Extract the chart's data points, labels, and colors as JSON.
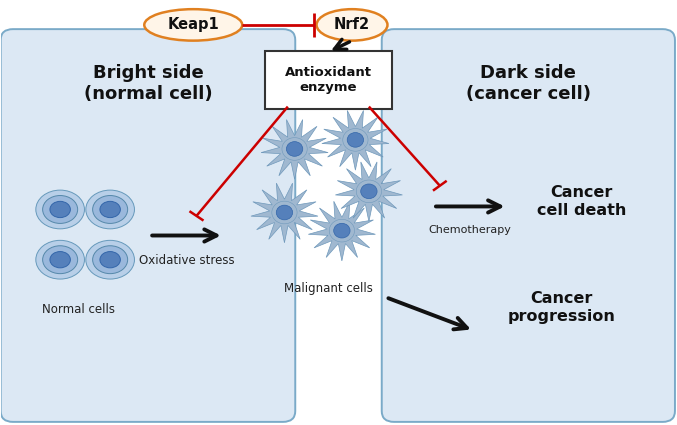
{
  "fig_width": 6.77,
  "fig_height": 4.25,
  "dpi": 100,
  "bg_color": "#ffffff",
  "box_fill": "#dce8f4",
  "box_edge": "#7aaac8",
  "keap1_label": "Keap1",
  "nrf2_label": "Nrf2",
  "antioxidant_label": "Antioxidant\nenzyme",
  "bright_side_label": "Bright side\n(normal cell)",
  "dark_side_label": "Dark side\n(cancer cell)",
  "normal_cells_label": "Normal cells",
  "oxidative_stress_label": "Oxidative stress",
  "malignant_cells_label": "Malignant cells",
  "chemotherapy_label": "Chemotherapy",
  "cancer_death_label": "Cancer\ncell death",
  "cancer_prog_label": "Cancer\nprogression",
  "cell_outer": "#b8cfe8",
  "cell_mid": "#9ab8dc",
  "cell_inner": "#5580bb",
  "malignant_spike": "#a0b8d0",
  "malignant_inner": "#5580bb",
  "arrow_black": "#111111",
  "arrow_red": "#cc0000",
  "ellipse_fill": "#fff5e8",
  "ellipse_edge": "#e08020",
  "ae_box_fill": "#ffffff",
  "ae_box_edge": "#333333"
}
